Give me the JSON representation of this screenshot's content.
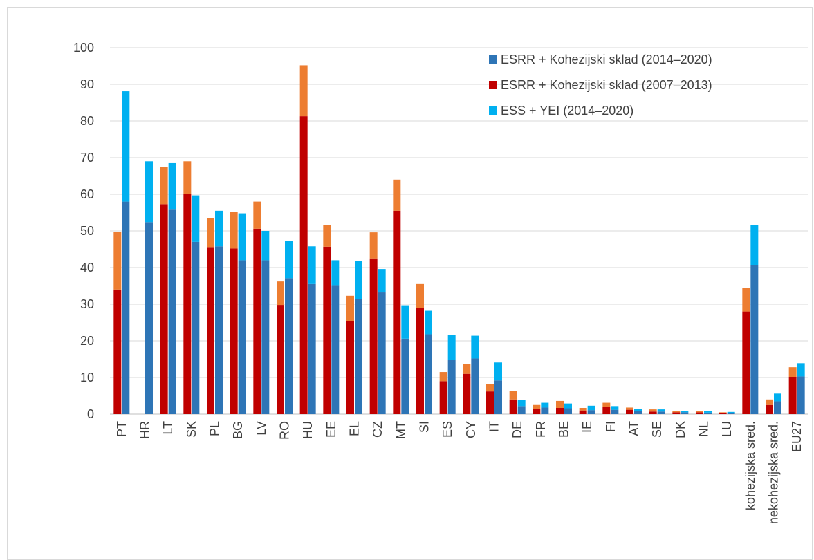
{
  "chart_data": {
    "type": "bar",
    "categories": [
      "PT",
      "HR",
      "LT",
      "SK",
      "PL",
      "BG",
      "LV",
      "RO",
      "HU",
      "EE",
      "EL",
      "CZ",
      "MT",
      "SI",
      "ES",
      "CY",
      "IT",
      "DE",
      "FR",
      "BE",
      "IE",
      "FI",
      "AT",
      "SE",
      "DK",
      "NL",
      "LU",
      "kohezijska sred.",
      "nekohezijska sred.",
      "EU27"
    ],
    "ylim": [
      0,
      100
    ],
    "yticks": [
      0,
      10,
      20,
      30,
      40,
      50,
      60,
      70,
      80,
      90,
      100
    ],
    "grid": true,
    "legend_position": "top-right",
    "legend": [
      {
        "label": "ESRR + Kohezijski sklad (2014–2020)",
        "color": "#2e75b6"
      },
      {
        "label": "ESRR + Kohezijski sklad (2007–2013)",
        "color": "#c00000"
      },
      {
        "label": "ESS + YEI (2014–2020)",
        "color": "#00b0f0"
      }
    ],
    "stack_2007_2013": {
      "base": [
        34,
        0,
        57.3,
        60,
        45.6,
        45.2,
        50.6,
        29.8,
        81.3,
        45.7,
        25.3,
        42.5,
        55.5,
        29,
        9,
        11,
        6.2,
        4,
        1.5,
        1.7,
        1,
        2,
        1.2,
        0.7,
        0.5,
        0.5,
        0.2,
        28,
        2.5,
        10
      ],
      "top_color": "#ed7d31",
      "top": [
        15.8,
        0,
        10.2,
        9,
        7.9,
        10,
        7.4,
        6.4,
        13.9,
        5.9,
        7,
        7.1,
        8.5,
        6.5,
        2.5,
        2.6,
        2,
        2.3,
        1,
        1.9,
        0.7,
        1.1,
        0.6,
        0.6,
        0.3,
        0.4,
        0.3,
        6.5,
        1.5,
        2.8
      ]
    },
    "stack_2014_2020": {
      "erdf": [
        58,
        52.4,
        55.8,
        47,
        45.8,
        42,
        42,
        37.1,
        35.5,
        35.2,
        31.4,
        33.2,
        20.6,
        21.8,
        14.8,
        15.2,
        9.2,
        2.2,
        1.8,
        1.6,
        1.1,
        1.2,
        0.8,
        0.7,
        0.5,
        0.4,
        0.2,
        40.7,
        3.5,
        10.3
      ],
      "esf": [
        30.1,
        16.6,
        12.7,
        12.7,
        9.7,
        12.8,
        8,
        10.1,
        10.3,
        6.8,
        10.4,
        6.4,
        9.1,
        6.4,
        6.8,
        6.2,
        4.9,
        1.6,
        1.3,
        1.3,
        1.2,
        1,
        0.6,
        0.6,
        0.3,
        0.4,
        0.4,
        10.9,
        2.1,
        3.6
      ]
    }
  }
}
